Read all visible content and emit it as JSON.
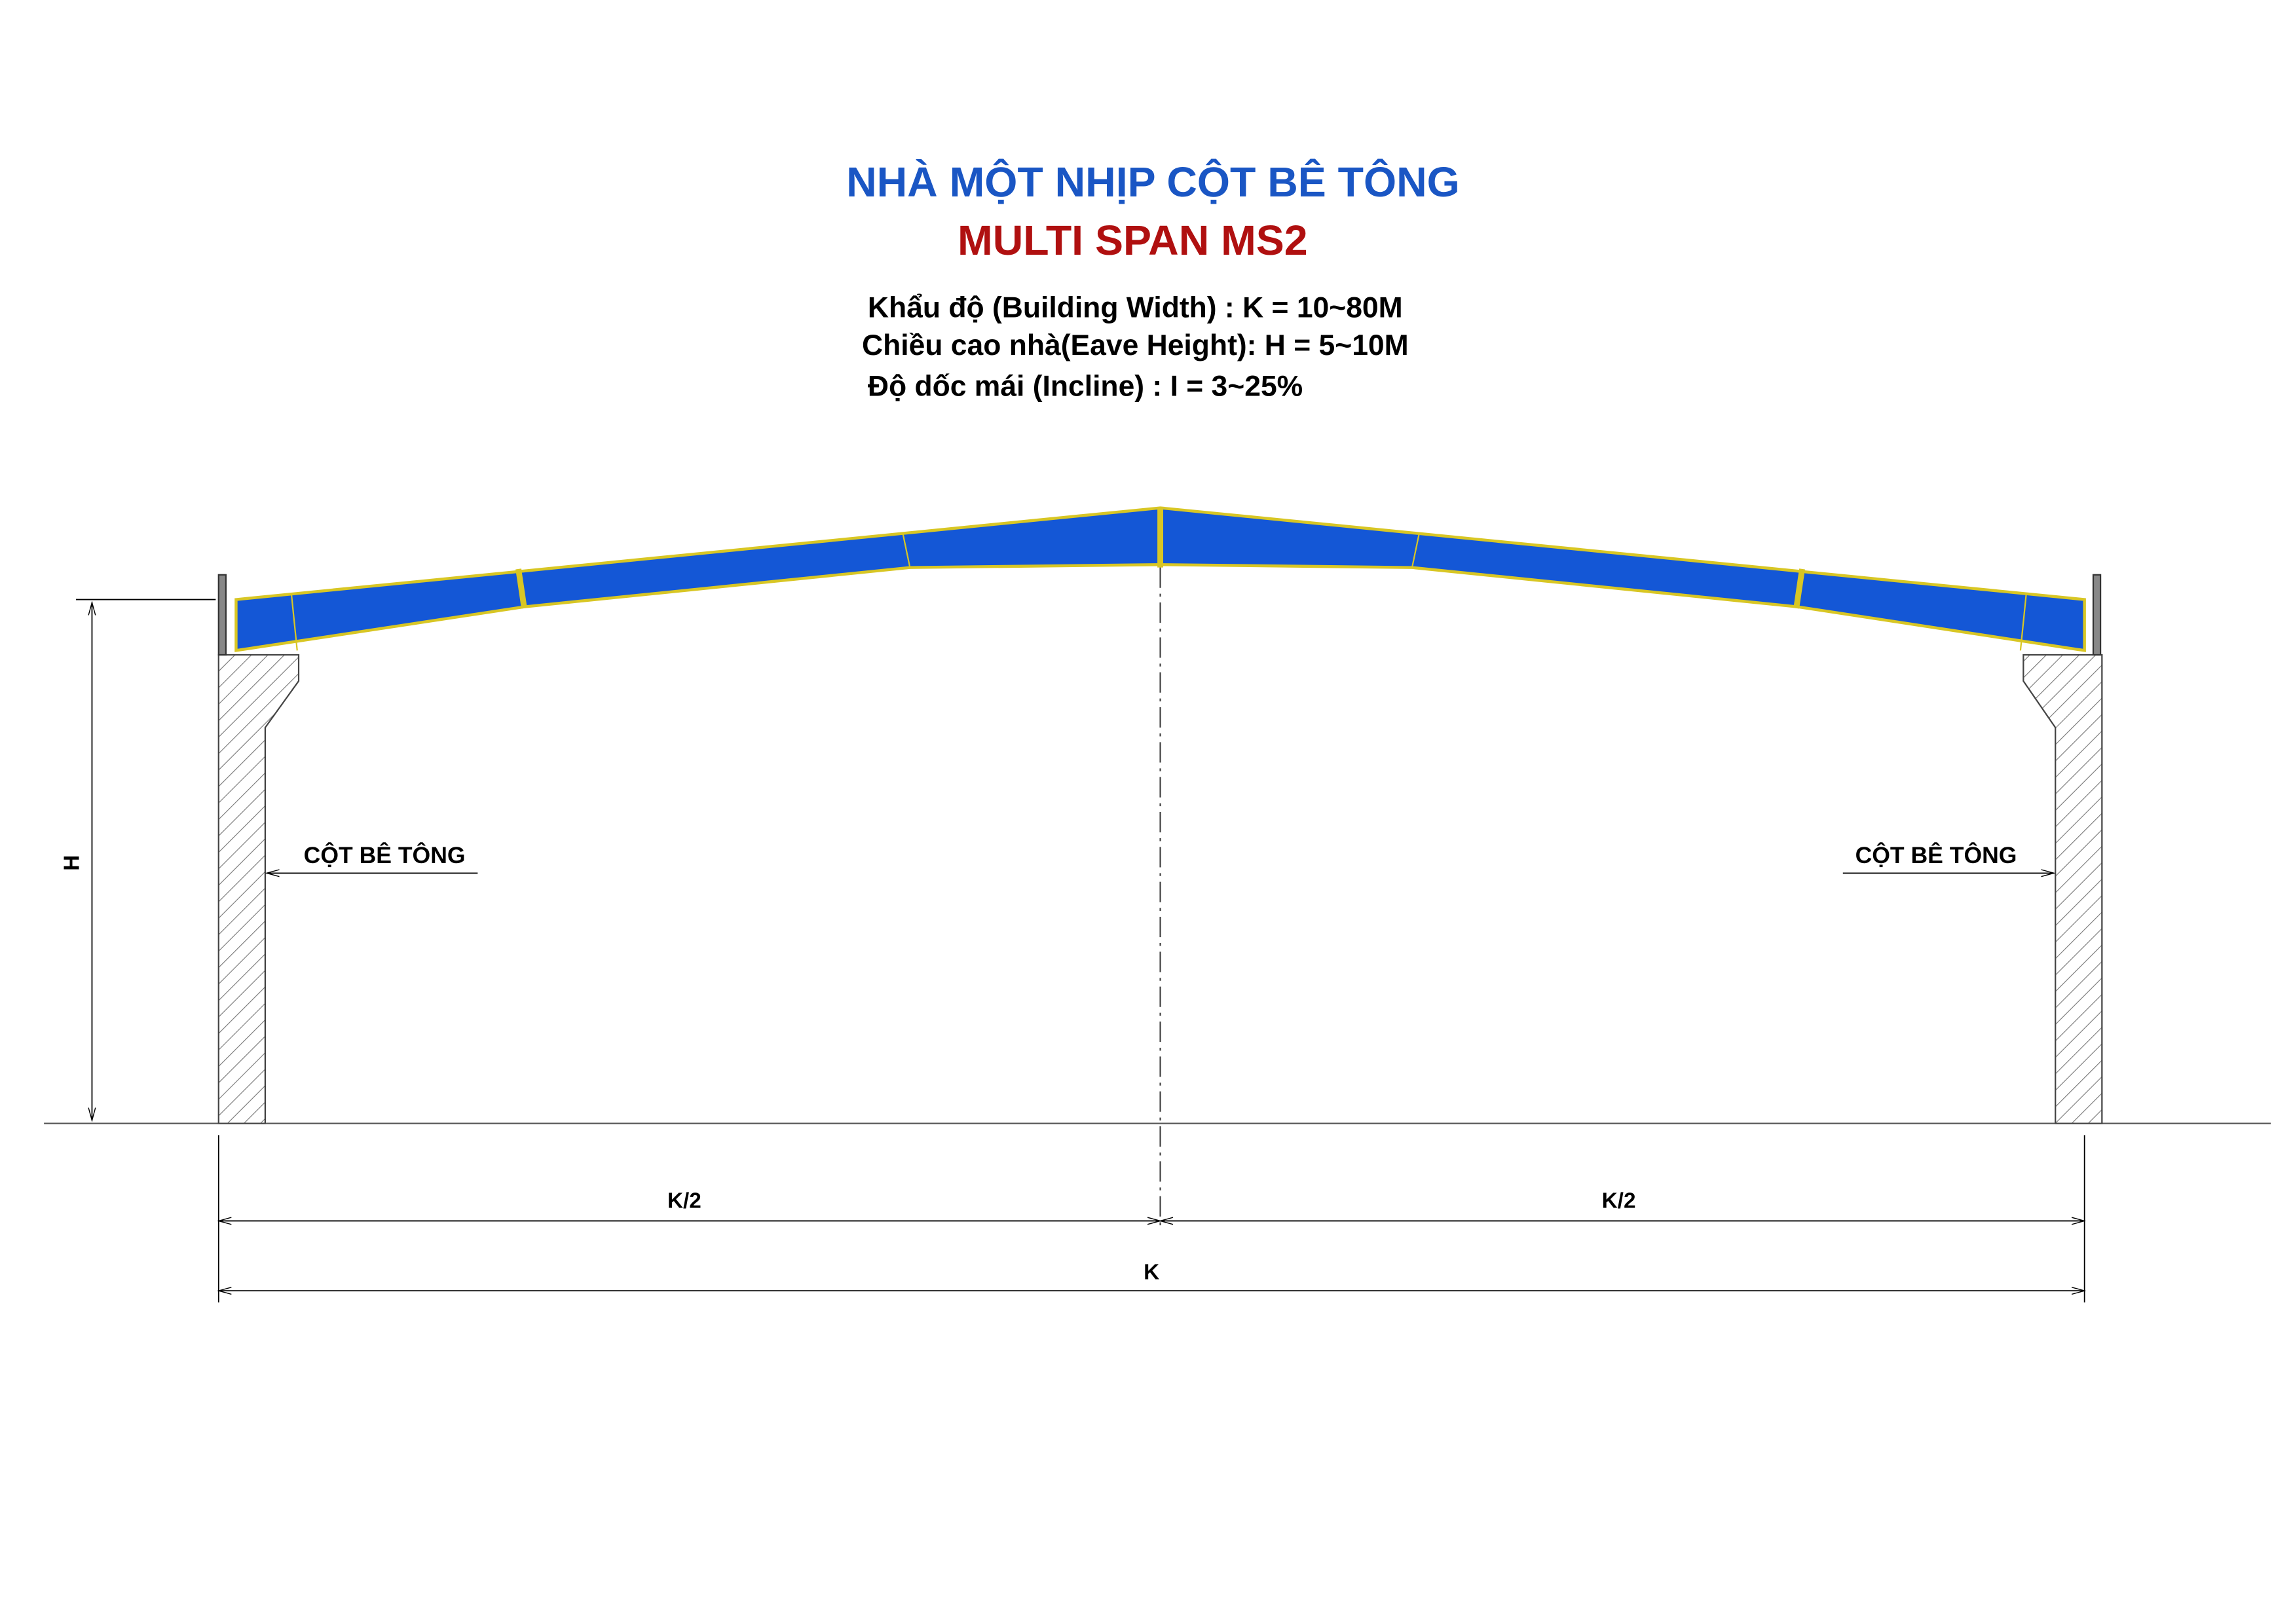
{
  "header": {
    "title": "NHÀ MỘT NHỊP CỘT BÊ TÔNG",
    "subtitle": "MULTI SPAN MS2"
  },
  "specs": [
    "Khẩu độ (Building Width) : K = 10~80M",
    "Chiều cao nhà(Eave Height): H = 5~10M",
    "Độ dốc mái (Incline) : I = 3~25%"
  ],
  "labels": {
    "left_column": "CỘT BÊ TÔNG",
    "right_column": "CỘT BÊ TÔNG",
    "height": "H",
    "half_span_left": "K/2",
    "half_span_right": "K/2",
    "span": "K"
  }
}
